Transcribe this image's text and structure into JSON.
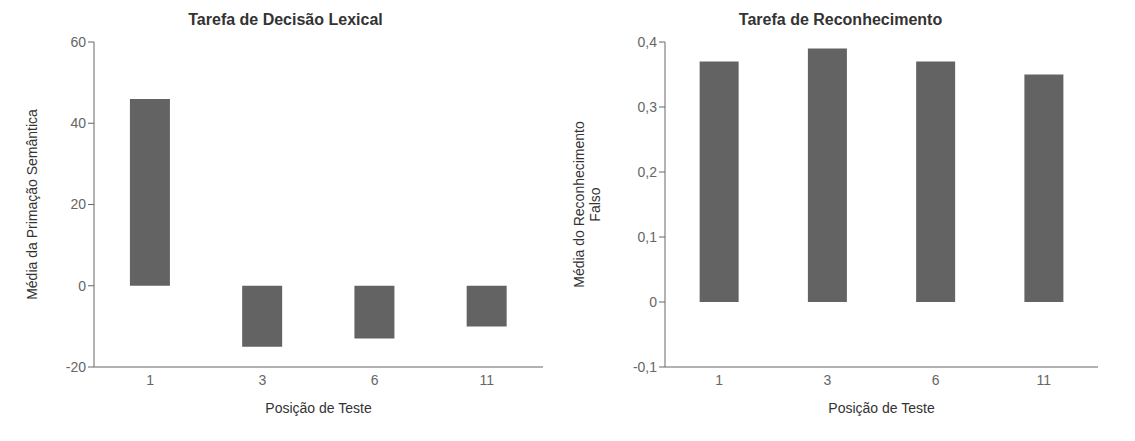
{
  "chart_data": [
    {
      "type": "bar",
      "title": "Tarefa de Decisão Lexical",
      "categories": [
        "1",
        "3",
        "6",
        "11"
      ],
      "values": [
        46,
        -15,
        -13,
        -10
      ],
      "xlabel": "Posição de Teste",
      "ylabel": "Média da Primação Semântica",
      "ylim": [
        -20,
        60
      ],
      "yticks": [
        -20,
        0,
        20,
        40,
        60
      ],
      "color": "#636363",
      "grid": false
    },
    {
      "type": "bar",
      "title": "Tarefa de Reconhecimento",
      "categories": [
        "1",
        "3",
        "6",
        "11"
      ],
      "values": [
        0.37,
        0.39,
        0.37,
        0.35
      ],
      "xlabel": "Posição de Teste",
      "ylabel": "Média do Reconhecimento\nFalso",
      "ylim": [
        -0.1,
        0.4
      ],
      "yticks": [
        {
          "value": -0.1,
          "label": "-0,1"
        },
        0,
        {
          "value": 0.1,
          "label": "0,1"
        },
        {
          "value": 0.2,
          "label": "0,2"
        },
        {
          "value": 0.3,
          "label": "0,3"
        },
        {
          "value": 0.4,
          "label": "0,4"
        }
      ],
      "color": "#636363",
      "grid": false
    }
  ]
}
